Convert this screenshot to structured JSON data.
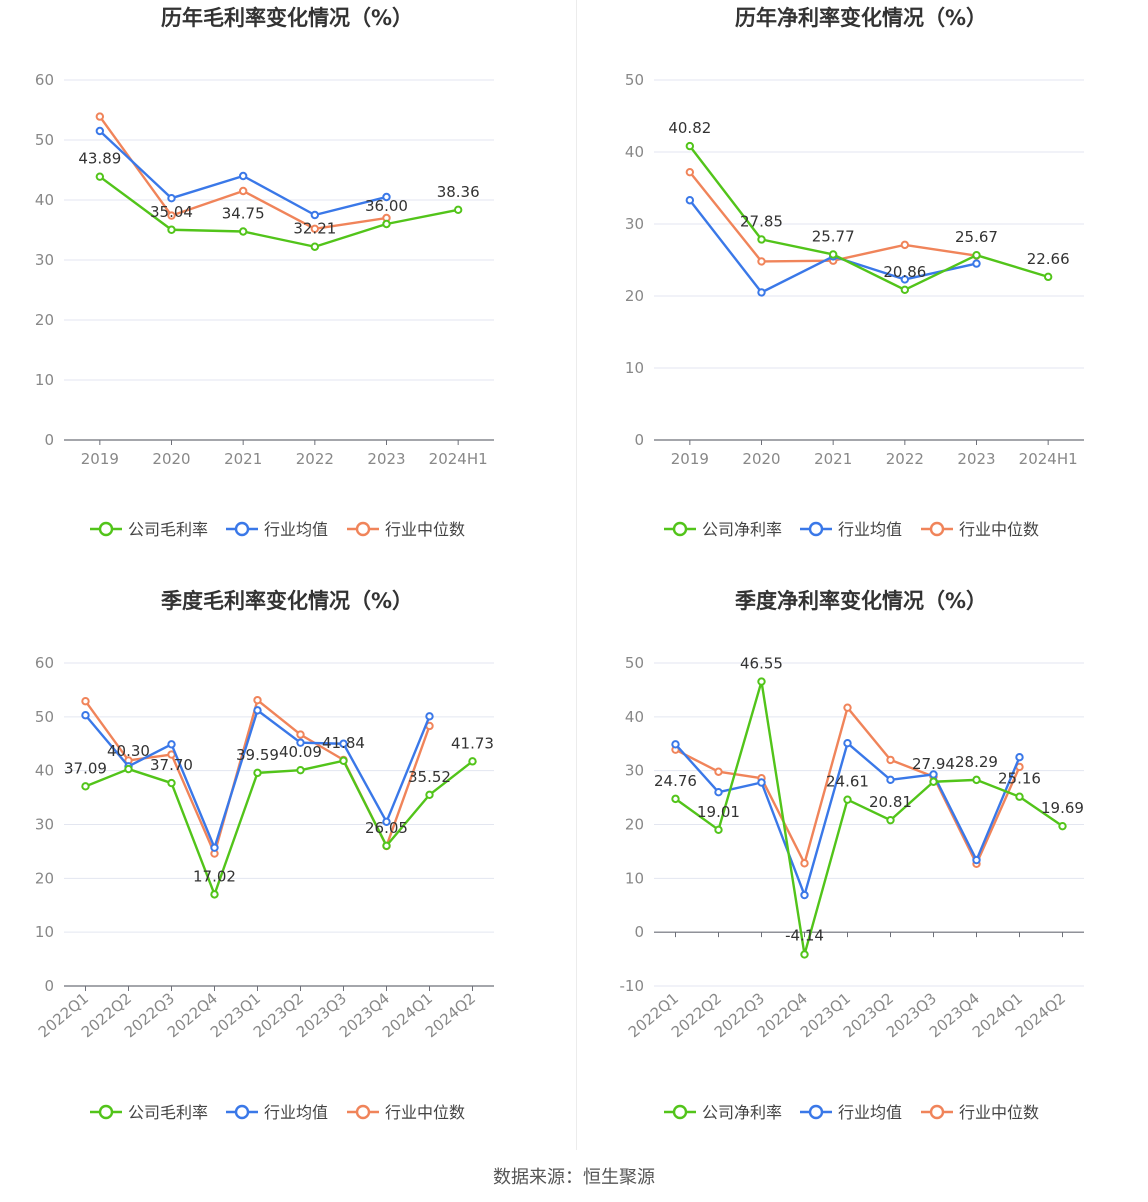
{
  "footer": "数据来源：恒生聚源",
  "colors": {
    "company": "#52c41a",
    "industry_avg": "#3a78e8",
    "industry_median": "#f0845a",
    "grid": "#e3e6f0",
    "axis_text": "#888888",
    "title": "#333333"
  },
  "chart_data": [
    {
      "id": "annual-gross",
      "type": "line",
      "title": "历年毛利率变化情况（%）",
      "categories": [
        "2019",
        "2020",
        "2021",
        "2022",
        "2023",
        "2024H1"
      ],
      "ylim": [
        0,
        60
      ],
      "yticks": [
        0,
        10,
        20,
        30,
        40,
        50,
        60
      ],
      "legend": [
        "公司毛利率",
        "行业均值",
        "行业中位数"
      ],
      "series": [
        {
          "name": "公司毛利率",
          "role": "company",
          "values": [
            43.89,
            35.04,
            34.75,
            32.21,
            36.0,
            38.36
          ]
        },
        {
          "name": "行业均值",
          "role": "industry_avg",
          "values": [
            51.5,
            40.3,
            44.0,
            37.5,
            40.5,
            null
          ]
        },
        {
          "name": "行业中位数",
          "role": "industry_median",
          "values": [
            53.9,
            37.4,
            41.5,
            35.2,
            37.0,
            null
          ]
        }
      ],
      "labels": [
        "43.89",
        "35.04",
        "34.75",
        "32.21",
        "36.00",
        "38.36"
      ]
    },
    {
      "id": "annual-net",
      "type": "line",
      "title": "历年净利率变化情况（%）",
      "categories": [
        "2019",
        "2020",
        "2021",
        "2022",
        "2023",
        "2024H1"
      ],
      "ylim": [
        0,
        50
      ],
      "yticks": [
        0,
        10,
        20,
        30,
        40,
        50
      ],
      "legend": [
        "公司净利率",
        "行业均值",
        "行业中位数"
      ],
      "series": [
        {
          "name": "公司净利率",
          "role": "company",
          "values": [
            40.82,
            27.85,
            25.77,
            20.86,
            25.67,
            22.66
          ]
        },
        {
          "name": "行业均值",
          "role": "industry_avg",
          "values": [
            33.3,
            20.5,
            25.5,
            22.3,
            24.5,
            null
          ]
        },
        {
          "name": "行业中位数",
          "role": "industry_median",
          "values": [
            37.2,
            24.8,
            24.9,
            27.1,
            25.6,
            null
          ]
        }
      ],
      "labels": [
        "40.82",
        "27.85",
        "25.77",
        "20.86",
        "25.67",
        "22.66"
      ]
    },
    {
      "id": "quarter-gross",
      "type": "line",
      "title": "季度毛利率变化情况（%）",
      "categories": [
        "2022Q1",
        "2022Q2",
        "2022Q3",
        "2022Q4",
        "2023Q1",
        "2023Q2",
        "2023Q3",
        "2023Q4",
        "2024Q1",
        "2024Q2"
      ],
      "ylim": [
        0,
        60
      ],
      "yticks": [
        0,
        10,
        20,
        30,
        40,
        50,
        60
      ],
      "legend": [
        "公司毛利率",
        "行业均值",
        "行业中位数"
      ],
      "series": [
        {
          "name": "公司毛利率",
          "role": "company",
          "values": [
            37.09,
            40.3,
            37.7,
            17.02,
            39.59,
            40.09,
            41.84,
            26.05,
            35.52,
            41.73
          ]
        },
        {
          "name": "行业均值",
          "role": "industry_avg",
          "values": [
            50.3,
            40.8,
            44.9,
            25.7,
            51.2,
            45.2,
            45.0,
            30.5,
            50.1,
            null
          ]
        },
        {
          "name": "行业中位数",
          "role": "industry_median",
          "values": [
            52.9,
            41.9,
            43.0,
            24.6,
            53.1,
            46.7,
            42.0,
            26.0,
            48.3,
            null
          ]
        }
      ],
      "labels": [
        "37.09",
        "40.30",
        "37.70",
        "17.02",
        "39.59",
        "40.09",
        "41.84",
        "26.05",
        "35.52",
        "41.73"
      ]
    },
    {
      "id": "quarter-net",
      "type": "line",
      "title": "季度净利率变化情况（%）",
      "categories": [
        "2022Q1",
        "2022Q2",
        "2022Q3",
        "2022Q4",
        "2023Q1",
        "2023Q2",
        "2023Q3",
        "2023Q4",
        "2024Q1",
        "2024Q2"
      ],
      "ylim": [
        -10,
        50
      ],
      "yticks": [
        -10,
        0,
        10,
        20,
        30,
        40,
        50
      ],
      "legend": [
        "公司净利率",
        "行业均值",
        "行业中位数"
      ],
      "series": [
        {
          "name": "公司净利率",
          "role": "company",
          "values": [
            24.76,
            19.01,
            46.55,
            -4.14,
            24.61,
            20.81,
            27.94,
            28.29,
            25.16,
            19.69
          ]
        },
        {
          "name": "行业均值",
          "role": "industry_avg",
          "values": [
            34.9,
            26.0,
            27.8,
            6.9,
            35.1,
            28.3,
            29.3,
            13.4,
            32.5,
            null
          ]
        },
        {
          "name": "行业中位数",
          "role": "industry_median",
          "values": [
            33.9,
            29.8,
            28.6,
            12.8,
            41.7,
            32.0,
            28.9,
            12.7,
            30.7,
            null
          ]
        }
      ],
      "labels": [
        "24.76",
        "19.01",
        "46.55",
        "-4.14",
        "24.61",
        "20.81",
        "27.94",
        "28.29",
        "25.16",
        "19.69"
      ]
    }
  ]
}
